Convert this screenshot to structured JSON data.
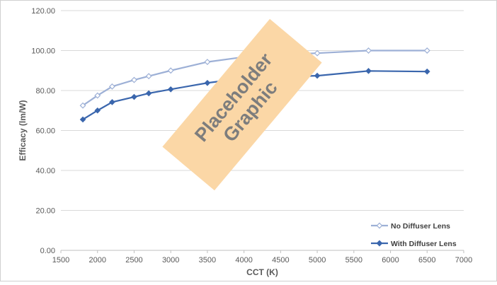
{
  "chart_data": {
    "type": "line",
    "title": "",
    "xlabel": "CCT (K)",
    "ylabel": "Efficacy (lm/W)",
    "xlim": [
      1500,
      7000
    ],
    "ylim": [
      0,
      120
    ],
    "x_ticks": [
      1500,
      2000,
      2500,
      3000,
      3500,
      4000,
      4500,
      5000,
      5500,
      6000,
      6500,
      7000
    ],
    "y_ticks": [
      0,
      20,
      40,
      60,
      80,
      100,
      120
    ],
    "y_tick_labels": [
      "0.00",
      "20.00",
      "40.00",
      "60.00",
      "80.00",
      "100.00",
      "120.00"
    ],
    "grid": "horizontal",
    "legend_position": "bottom-right",
    "series": [
      {
        "name": "No Diffuser Lens",
        "color": "#9db0d6",
        "marker": "diamond-open",
        "x": [
          1800,
          2000,
          2200,
          2500,
          2700,
          3000,
          3500,
          4000,
          4500,
          5000,
          5700,
          6500
        ],
        "y": [
          72.5,
          77.5,
          82,
          85.3,
          87.2,
          90,
          94.3,
          96.8,
          98,
          98.7,
          100,
          100
        ]
      },
      {
        "name": "With Diffuser Lens",
        "color": "#3a66ad",
        "marker": "diamond",
        "x": [
          1800,
          2000,
          2200,
          2500,
          2700,
          3000,
          3500,
          4000,
          4500,
          5000,
          5700,
          6500
        ],
        "y": [
          65.5,
          70,
          74.2,
          76.8,
          78.6,
          80.6,
          83.8,
          86.2,
          87,
          87.4,
          89.8,
          89.5
        ]
      }
    ]
  },
  "overlay": {
    "line1": "Placeholder",
    "line2": "Graphic",
    "color": "#fbd7a6",
    "text_color": "#7d7d7d"
  }
}
